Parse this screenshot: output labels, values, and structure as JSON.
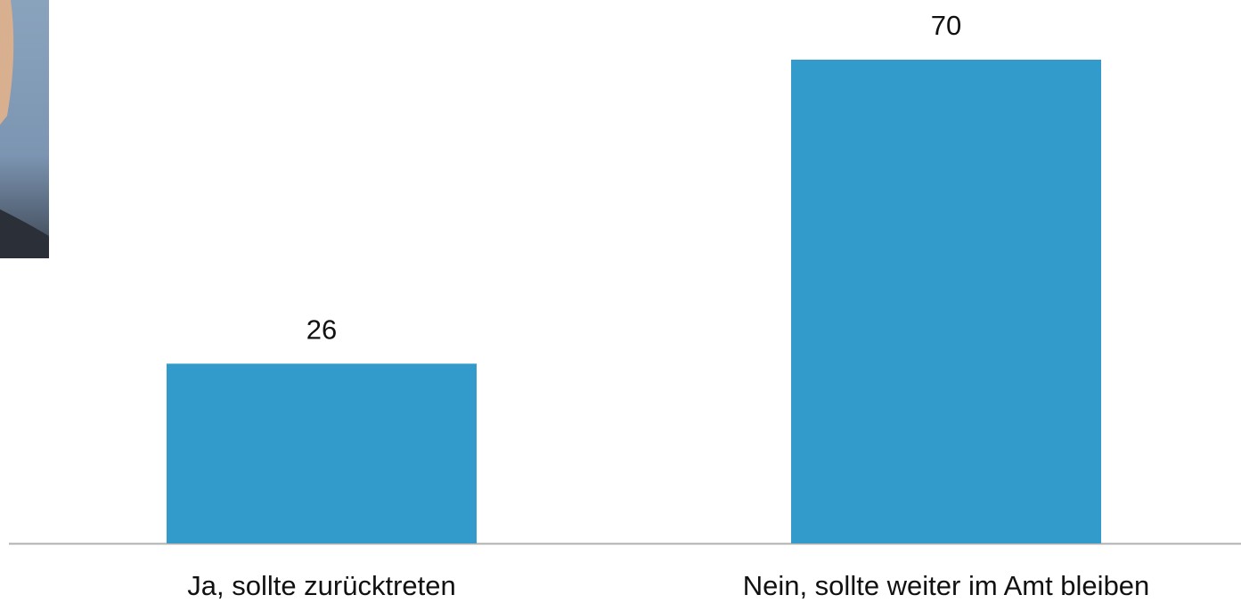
{
  "chart_data": {
    "type": "bar",
    "categories": [
      "Ja, sollte zurücktreten",
      "Nein, sollte weiter im Amt bleiben"
    ],
    "values": [
      26,
      70
    ],
    "color": "#339bcb"
  }
}
